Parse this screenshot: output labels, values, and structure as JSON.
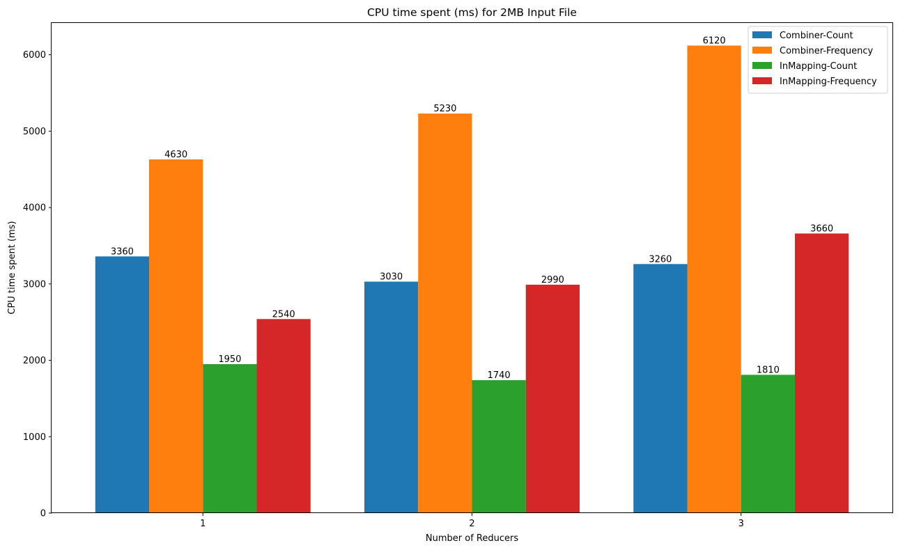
{
  "chart_data": {
    "type": "bar",
    "title": "CPU time spent (ms) for 2MB Input File",
    "xlabel": "Number of Reducers",
    "ylabel": "CPU time spent (ms)",
    "categories": [
      "1",
      "2",
      "3"
    ],
    "ylim": [
      0,
      6425
    ],
    "yticks": [
      0,
      1000,
      2000,
      3000,
      4000,
      5000,
      6000
    ],
    "grid": false,
    "legend_position": "top-right",
    "series": [
      {
        "name": "Combiner-Count",
        "color": "#1f77b4",
        "values": [
          3360,
          3030,
          3260
        ]
      },
      {
        "name": "Combiner-Frequency",
        "color": "#ff7f0e",
        "values": [
          4630,
          5230,
          6120
        ]
      },
      {
        "name": "InMapping-Count",
        "color": "#2ca02c",
        "values": [
          1950,
          1740,
          1810
        ]
      },
      {
        "name": "InMapping-Frequency",
        "color": "#d62728",
        "values": [
          2540,
          2990,
          3660
        ]
      }
    ]
  }
}
